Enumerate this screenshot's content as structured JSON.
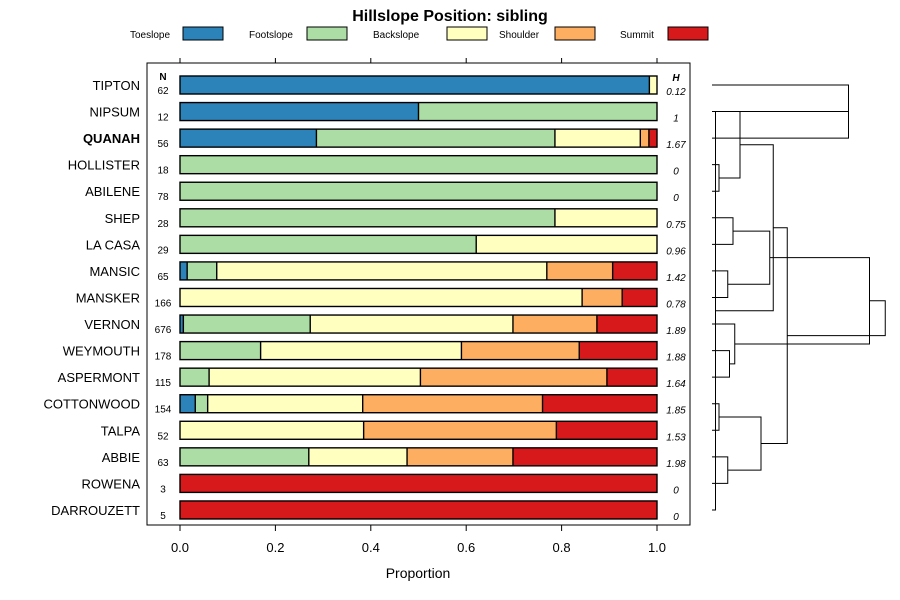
{
  "chart_data": {
    "type": "bar",
    "orientation": "horizontal",
    "stacked": true,
    "title": "Hillslope Position: sibling",
    "xlabel": "Proportion",
    "xlim": [
      0,
      1
    ],
    "xticks": [
      "0.0",
      "0.2",
      "0.4",
      "0.6",
      "0.8",
      "1.0"
    ],
    "n_header": "N",
    "h_header": "H",
    "legend": {
      "placement": "top",
      "entries": [
        {
          "label": "Toeslope",
          "color": "#2b83ba"
        },
        {
          "label": "Footslope",
          "color": "#abdda4"
        },
        {
          "label": "Backslope",
          "color": "#ffffbf"
        },
        {
          "label": "Shoulder",
          "color": "#fdae61"
        },
        {
          "label": "Summit",
          "color": "#d7191c"
        }
      ]
    },
    "highlight": "QUANAH",
    "rows": [
      {
        "name": "TIPTON",
        "n": "62",
        "h": "0.12",
        "values": [
          0.984,
          0,
          0.016,
          0,
          0
        ]
      },
      {
        "name": "NIPSUM",
        "n": "12",
        "h": "1",
        "values": [
          0.5,
          0.5,
          0,
          0,
          0
        ]
      },
      {
        "name": "QUANAH",
        "n": "56",
        "h": "1.67",
        "values": [
          0.286,
          0.5,
          0.179,
          0.018,
          0.017
        ]
      },
      {
        "name": "HOLLISTER",
        "n": "18",
        "h": "0",
        "values": [
          0,
          1,
          0,
          0,
          0
        ]
      },
      {
        "name": "ABILENE",
        "n": "78",
        "h": "0",
        "values": [
          0,
          1,
          0,
          0,
          0
        ]
      },
      {
        "name": "SHEP",
        "n": "28",
        "h": "0.75",
        "values": [
          0,
          0.786,
          0.214,
          0,
          0
        ]
      },
      {
        "name": "LA CASA",
        "n": "29",
        "h": "0.96",
        "values": [
          0,
          0.621,
          0.379,
          0,
          0
        ]
      },
      {
        "name": "MANSIC",
        "n": "65",
        "h": "1.42",
        "values": [
          0.015,
          0.062,
          0.692,
          0.138,
          0.093
        ]
      },
      {
        "name": "MANSKER",
        "n": "166",
        "h": "0.78",
        "values": [
          0,
          0,
          0.843,
          0.084,
          0.073
        ]
      },
      {
        "name": "VERNON",
        "n": "676",
        "h": "1.89",
        "values": [
          0.007,
          0.266,
          0.425,
          0.176,
          0.126
        ]
      },
      {
        "name": "WEYMOUTH",
        "n": "178",
        "h": "1.88",
        "values": [
          0,
          0.169,
          0.421,
          0.247,
          0.163
        ]
      },
      {
        "name": "ASPERMONT",
        "n": "115",
        "h": "1.64",
        "values": [
          0,
          0.061,
          0.443,
          0.391,
          0.105
        ]
      },
      {
        "name": "COTTONWOOD",
        "n": "154",
        "h": "1.85",
        "values": [
          0.032,
          0.026,
          0.325,
          0.377,
          0.24
        ]
      },
      {
        "name": "TALPA",
        "n": "52",
        "h": "1.53",
        "values": [
          0,
          0,
          0.385,
          0.404,
          0.211
        ]
      },
      {
        "name": "ABBIE",
        "n": "63",
        "h": "1.98",
        "values": [
          0,
          0.27,
          0.206,
          0.222,
          0.302
        ]
      },
      {
        "name": "ROWENA",
        "n": "3",
        "h": "0",
        "values": [
          0,
          0,
          0,
          0,
          1
        ]
      },
      {
        "name": "DARROUZETT",
        "n": "5",
        "h": "0",
        "values": [
          0,
          0,
          0,
          0,
          1
        ]
      }
    ],
    "dendrogram": [
      {
        "a": 0,
        "b": 2,
        "height": 0.78
      },
      {
        "a": 3,
        "b": 4,
        "height": 0.04
      },
      {
        "a": 5,
        "b": 6,
        "height": 0.12
      },
      {
        "a": 7,
        "b": 8,
        "height": 0.09
      },
      {
        "a": 10,
        "b": 11,
        "height": 0.1
      },
      {
        "a": 12,
        "b": 13,
        "height": 0.04
      },
      {
        "a": 14,
        "b": 15,
        "height": 0.09
      },
      {
        "a": 16,
        "b": 17,
        "height": 0.02
      },
      {
        "a": 1,
        "b": 18,
        "height": 0.16
      },
      {
        "a": 19,
        "b": 20,
        "height": 0.33
      },
      {
        "a": 9,
        "b": 21,
        "height": 0.13
      },
      {
        "a": 22,
        "b": 23,
        "height": 0.28
      },
      {
        "a": 24,
        "b": 25,
        "height": 0.35
      },
      {
        "a": 26,
        "b": 27,
        "height": 0.9
      },
      {
        "a": 28,
        "b": 29,
        "height": 0.43
      },
      {
        "a": 30,
        "b": 31,
        "height": 0.99
      }
    ]
  }
}
